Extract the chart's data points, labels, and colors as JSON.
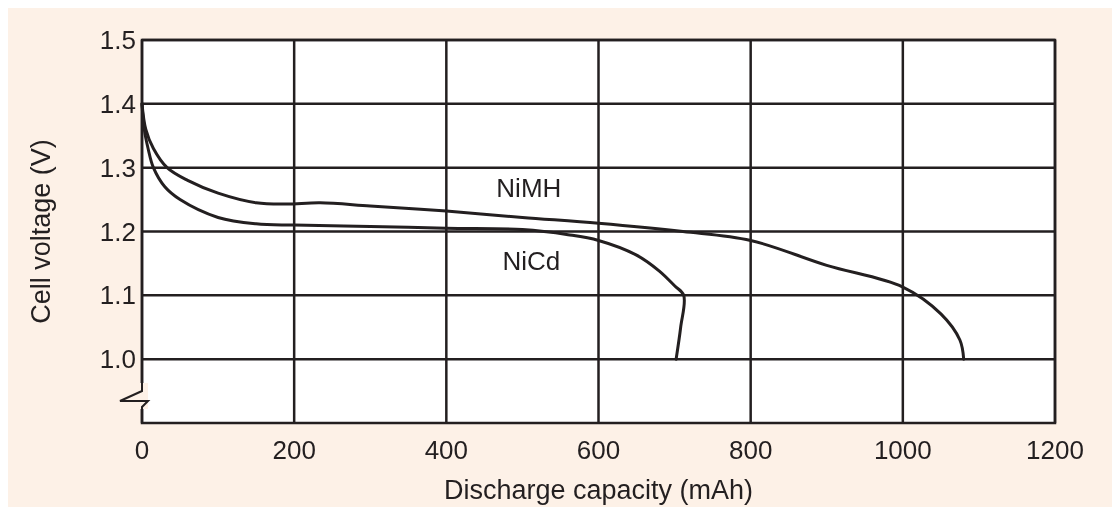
{
  "chart_data": {
    "type": "line",
    "xlabel": "Discharge capacity (mAh)",
    "ylabel": "Cell voltage (V)",
    "xlim": [
      0,
      1200
    ],
    "xticks": [
      0,
      200,
      400,
      600,
      800,
      1000,
      1200
    ],
    "ylim": [
      0.9,
      1.5
    ],
    "yticks": [
      {
        "value": 1.0,
        "label": "1.0"
      },
      1.1,
      1.2,
      1.3,
      1.4,
      1.5
    ],
    "grid": true,
    "series": [
      {
        "name": "NiMH",
        "color": "#231f20",
        "x": [
          0,
          5,
          15,
          33,
          60,
          100,
          150,
          190,
          234,
          300,
          400,
          500,
          600,
          711,
          800,
          900,
          1000,
          1050,
          1075,
          1080
        ],
        "values": [
          1.4,
          1.36,
          1.33,
          1.3,
          1.28,
          1.26,
          1.245,
          1.243,
          1.245,
          1.24,
          1.232,
          1.222,
          1.213,
          1.2,
          1.186,
          1.147,
          1.113,
          1.071,
          1.03,
          1.0
        ]
      },
      {
        "name": "NiCd",
        "color": "#231f20",
        "x": [
          0,
          3,
          8,
          15,
          30,
          50,
          100,
          150,
          200,
          300,
          400,
          500,
          560,
          600,
          650,
          680,
          700,
          712,
          708,
          702
        ],
        "values": [
          1.4,
          1.36,
          1.33,
          1.3,
          1.27,
          1.25,
          1.222,
          1.212,
          1.21,
          1.208,
          1.205,
          1.203,
          1.195,
          1.186,
          1.163,
          1.138,
          1.115,
          1.1,
          1.05,
          1.0
        ]
      }
    ]
  }
}
